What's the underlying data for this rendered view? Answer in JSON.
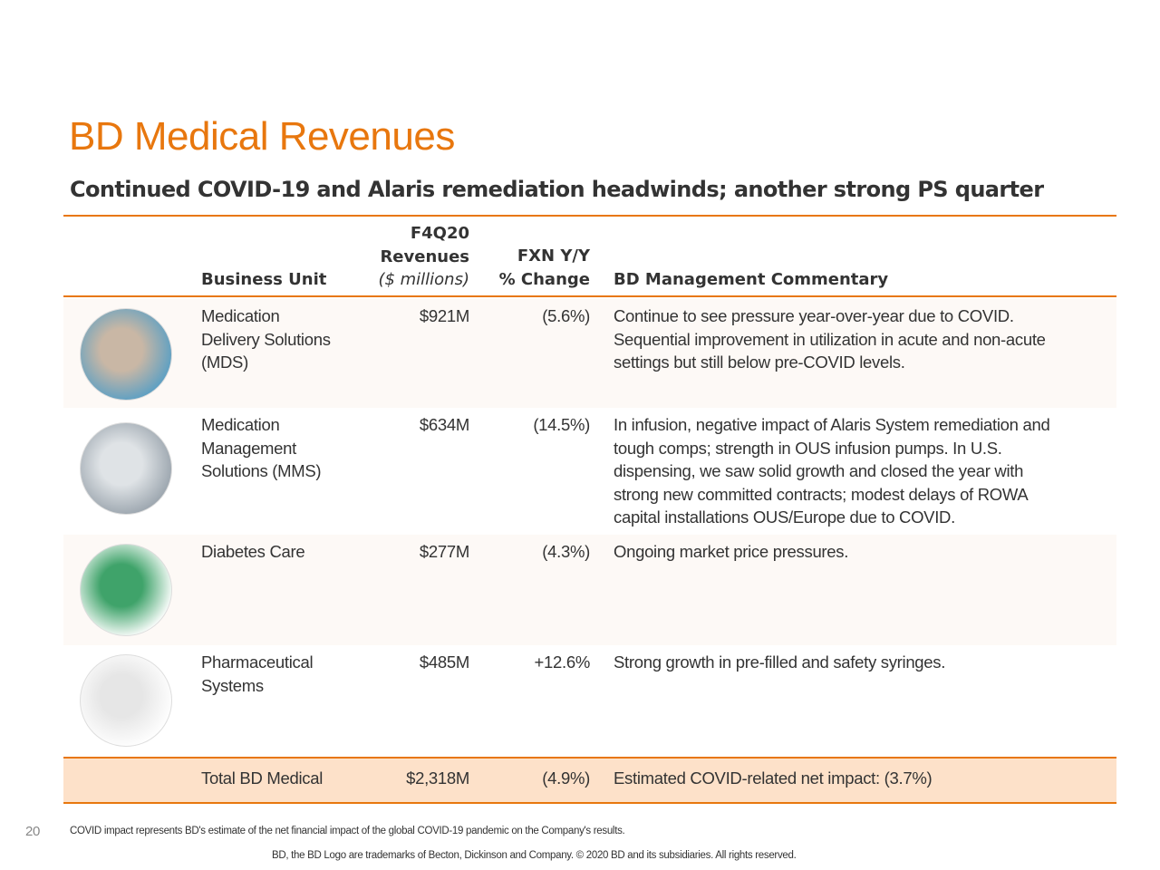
{
  "title": "BD Medical Revenues",
  "subtitle": "Continued COVID-19 and Alaris remediation headwinds; another strong PS quarter",
  "colors": {
    "accent": "#e8770e",
    "row_tint": "#fdf9f6",
    "total_bg": "#fde1c9"
  },
  "headers": {
    "business_unit": "Business Unit",
    "rev_1": "F4Q20",
    "rev_2": "Revenues",
    "rev_3": "($ millions)",
    "pct_1": "FXN Y/Y",
    "pct_2": "% Change",
    "commentary": "BD Management Commentary"
  },
  "rows": [
    {
      "unit": [
        "Medication",
        "Delivery Solutions",
        "(MDS)"
      ],
      "revenue": "$921M",
      "change": "(5.6%)",
      "commentary": [
        "Continue to see pressure year-over-year due to COVID.",
        "Sequential improvement in utilization in acute and non-acute",
        "settings but still below pre-COVID levels."
      ],
      "image": "clinician-hands-iv-photo"
    },
    {
      "unit": [
        "Medication",
        "Management",
        "Solutions (MMS)"
      ],
      "revenue": "$634M",
      "change": "(14.5%)",
      "commentary": [
        "In infusion, negative impact of Alaris System remediation and",
        "tough comps;  strength in OUS infusion pumps. In U.S.",
        "dispensing, we saw solid growth and closed the year with",
        "strong new committed contracts; modest delays of ROWA",
        "capital installations OUS/Europe due to COVID."
      ],
      "image": "infusion-pump-photo"
    },
    {
      "unit": [
        "Diabetes Care"
      ],
      "revenue": "$277M",
      "change": "(4.3%)",
      "commentary": [
        "Ongoing market price pressures."
      ],
      "image": "pen-needle-box-photo"
    },
    {
      "unit": [
        "Pharmaceutical",
        "Systems"
      ],
      "revenue": "$485M",
      "change": "+12.6%",
      "commentary": [
        "Strong growth in pre-filled and safety syringes."
      ],
      "image": "prefilled-syringe-photo"
    }
  ],
  "total": {
    "unit": "Total BD Medical",
    "revenue": "$2,318M",
    "change": "(4.9%)",
    "commentary": "Estimated COVID-related net impact: (3.7%)"
  },
  "footer": {
    "page": "20",
    "note": "COVID impact represents BD's estimate of the net financial impact of the global COVID-19 pandemic on the Company's results.",
    "legal": "BD, the BD Logo are trademarks of Becton, Dickinson and Company. © 2020 BD and its subsidiaries. All rights reserved."
  }
}
